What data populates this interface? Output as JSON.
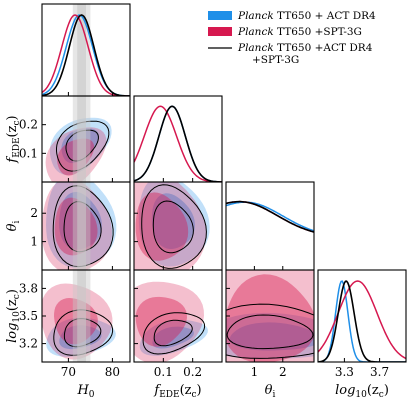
{
  "colors": {
    "blue": "#1f8fe8",
    "red": "#d6184f",
    "black": "#000000",
    "band": "#c8c8c8"
  },
  "legend": [
    {
      "italic": "Planck",
      "text": " TT650 + ACT DR4",
      "color": "#1f8fe8",
      "kind": "patch"
    },
    {
      "italic": "Planck",
      "text": " TT650 +SPT-3G",
      "color": "#d6184f",
      "kind": "patch"
    },
    {
      "italic": "Planck",
      "text": " TT650 +ACT DR4",
      "text2": "+SPT-3G",
      "color": "#000000",
      "kind": "line"
    }
  ],
  "axes": {
    "H0": {
      "label": "H",
      "sub": "0",
      "range": [
        64,
        84
      ],
      "ticks": [
        "70",
        "80"
      ],
      "tickvals": [
        70,
        80
      ]
    },
    "fEDE": {
      "label": "f",
      "sub": "EDE",
      "arg": "(z",
      "argsub": "c",
      "close": ")",
      "range": [
        0,
        0.3
      ],
      "ticks": [
        "0.1",
        "0.2"
      ],
      "tickvals": [
        0.1,
        0.2
      ],
      "yticks": [
        "0.1",
        "0.2"
      ]
    },
    "theta": {
      "label": "θ",
      "sub": "i",
      "range": [
        0,
        3.1
      ],
      "ticks": [
        "1",
        "2"
      ],
      "tickvals": [
        1,
        2
      ]
    },
    "logzc": {
      "label": "log",
      "sub": "10",
      "arg": "(z",
      "argsub": "c",
      "close": ")",
      "range": [
        3.0,
        4.0
      ],
      "ticks": [
        "3.3",
        "3.7"
      ],
      "tickvals": [
        3.3,
        3.7
      ],
      "yticks": [
        "3.2",
        "3.5",
        "3.8"
      ],
      "ytickvals": [
        3.2,
        3.5,
        3.8
      ]
    }
  },
  "shoes_band": {
    "center": 73.0,
    "inner_halfwidth": 1.0,
    "outer_halfwidth": 2.0
  },
  "chart_data": {
    "type": "scatter",
    "parameters": [
      "H0",
      "fEDE(zc)",
      "theta_i",
      "log10(zc)"
    ],
    "series": [
      {
        "name": "Planck TT650 + ACT DR4",
        "color": "#1f8fe8",
        "means": {
          "H0": 72.5,
          "fEDE": 0.13,
          "theta": 1.7,
          "logzc": 3.27
        },
        "sigmas": {
          "H0": 3.0,
          "fEDE": 0.045,
          "theta": 1.0,
          "logzc": 0.07
        }
      },
      {
        "name": "Planck TT650 +SPT-3G",
        "color": "#d6184f",
        "means": {
          "H0": 71.5,
          "fEDE": 0.09,
          "theta": 1.5,
          "logzc": 3.45
        },
        "sigmas": {
          "H0": 3.0,
          "fEDE": 0.055,
          "theta": 1.0,
          "logzc": 0.22
        }
      },
      {
        "name": "Planck TT650 +ACT DR4 +SPT-3G",
        "color": "#000000",
        "means": {
          "H0": 73.0,
          "fEDE": 0.13,
          "theta": 1.5,
          "logzc": 3.32
        },
        "sigmas": {
          "H0": 2.8,
          "fEDE": 0.045,
          "theta": 1.0,
          "logzc": 0.09
        }
      }
    ]
  }
}
